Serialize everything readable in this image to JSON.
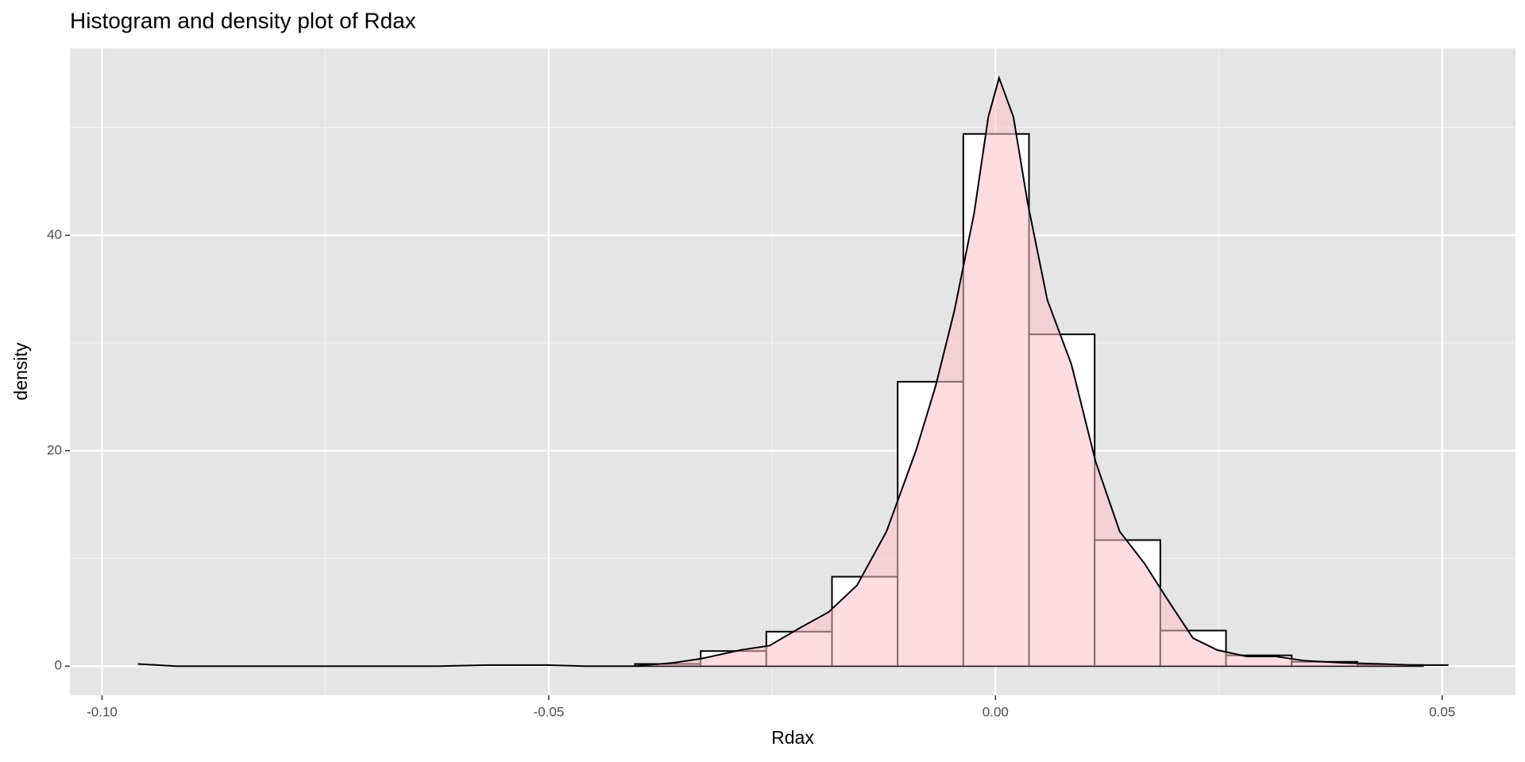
{
  "chart_data": {
    "type": "histogram",
    "title": "Histogram and density plot of Rdax",
    "xlabel": "Rdax",
    "ylabel": "density",
    "bins": [
      -0.0918,
      -0.08445,
      -0.0771,
      -0.06975,
      -0.0624,
      -0.05505,
      -0.0477,
      -0.04035,
      -0.033,
      -0.02565,
      -0.0183,
      -0.01095,
      -0.0036,
      0.00375,
      0.0111,
      0.01845,
      0.0258,
      0.03315,
      0.0405,
      0.04785
    ],
    "counts": [
      0,
      0,
      0,
      0,
      0,
      0,
      0,
      0.2,
      1.4,
      3.2,
      8.3,
      26.4,
      49.4,
      30.8,
      11.7,
      3.3,
      1.0,
      0.4,
      0.1
    ],
    "bar_color": "#ffffff",
    "bar_edge": "#000000",
    "density": {
      "color": "#ffc0cb",
      "line": "#000000",
      "x": [
        -0.096,
        -0.0917,
        -0.0623,
        -0.0568,
        -0.0503,
        -0.046,
        -0.0405,
        -0.0361,
        -0.0329,
        -0.0285,
        -0.0253,
        -0.022,
        -0.0187,
        -0.0155,
        -0.0122,
        -0.0089,
        -0.0067,
        -0.0046,
        -0.0024,
        -0.0008,
        0.0004,
        0.002,
        0.0036,
        0.0058,
        0.0085,
        0.0112,
        0.0139,
        0.0167,
        0.0194,
        0.0221,
        0.0248,
        0.0281,
        0.0314,
        0.0346,
        0.039,
        0.0433,
        0.0466,
        0.0507
      ],
      "values": [
        0.2,
        0,
        0,
        0.1,
        0.1,
        0,
        0,
        0.3,
        0.7,
        1.5,
        1.9,
        3.5,
        5.0,
        7.5,
        12.5,
        20,
        26,
        33,
        42,
        51,
        54.6,
        51,
        43,
        34,
        28,
        19,
        12.5,
        9.5,
        6,
        2.6,
        1.5,
        0.9,
        0.9,
        0.5,
        0.3,
        0.2,
        0.1,
        0.1
      ]
    },
    "xlim": [
      -0.1036,
      0.0582
    ],
    "ylim": [
      -2.71,
      57.34
    ],
    "xticks": [
      {
        "value": -0.1,
        "label": "-0.10"
      },
      {
        "value": -0.05,
        "label": "-0.05"
      },
      {
        "value": 0,
        "label": "0.00"
      },
      {
        "value": 0.05,
        "label": "0.05"
      }
    ],
    "yticks": [
      0,
      20,
      40
    ],
    "xminor": [
      -0.075,
      -0.025,
      0.025
    ],
    "yminor": [
      10,
      30,
      50
    ],
    "grid": true
  }
}
